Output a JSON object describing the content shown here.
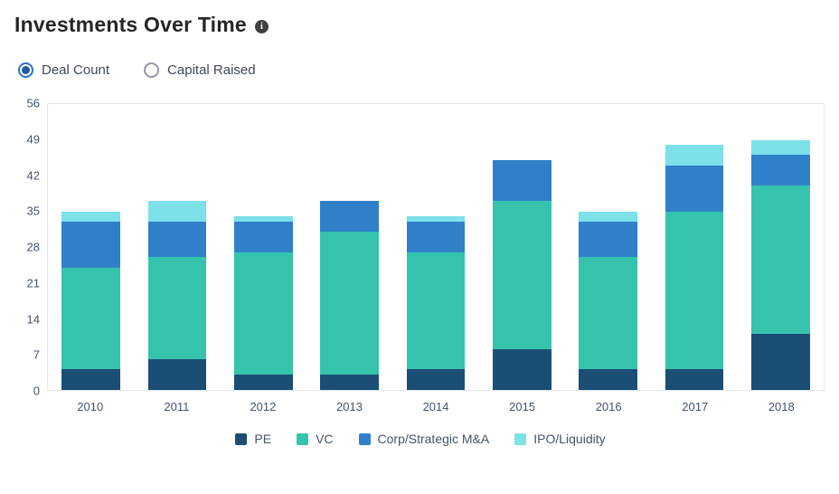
{
  "header": {
    "title": "Investments Over Time"
  },
  "controls": {
    "options": [
      {
        "id": "deal-count",
        "label": "Deal Count",
        "selected": true
      },
      {
        "id": "capital-raised",
        "label": "Capital Raised",
        "selected": false
      }
    ]
  },
  "chart_data": {
    "type": "bar",
    "stacked": true,
    "title": "Investments Over Time",
    "categories": [
      "2010",
      "2011",
      "2012",
      "2013",
      "2014",
      "2015",
      "2016",
      "2017",
      "2018"
    ],
    "series": [
      {
        "name": "PE",
        "color": "#1a4e74",
        "values": [
          4,
          6,
          3,
          3,
          4,
          8,
          4,
          4,
          11
        ]
      },
      {
        "name": "VC",
        "color": "#35c3ac",
        "values": [
          20,
          20,
          24,
          28,
          23,
          29,
          22,
          31,
          29
        ]
      },
      {
        "name": "Corp/Strategic M&A",
        "color": "#2f80c9",
        "values": [
          9,
          7,
          6,
          6,
          6,
          8,
          7,
          9,
          6
        ]
      },
      {
        "name": "IPO/Liquidity",
        "color": "#7ce1e9",
        "values": [
          2,
          4,
          1,
          0,
          1,
          0,
          2,
          4,
          3
        ]
      }
    ],
    "ylim": [
      0,
      56
    ],
    "yticks": [
      0,
      7,
      14,
      21,
      28,
      35,
      42,
      49,
      56
    ],
    "grid": false,
    "legend_position": "bottom"
  }
}
